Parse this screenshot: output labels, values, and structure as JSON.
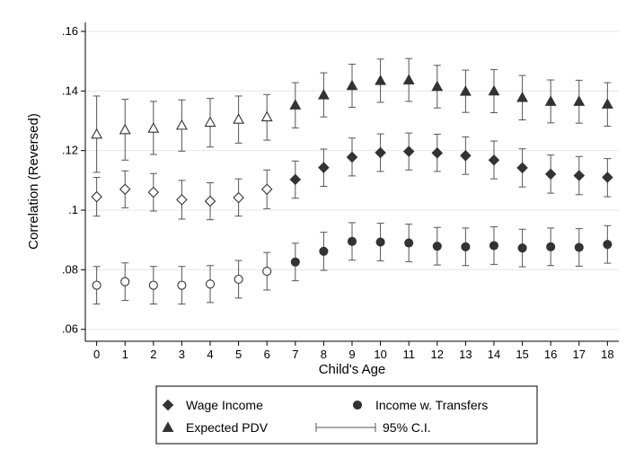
{
  "chart_data": {
    "type": "scatter",
    "title": "",
    "xlabel": "Child's Age",
    "ylabel": "Correlation (Reversed)",
    "x": [
      0,
      1,
      2,
      3,
      4,
      5,
      6,
      7,
      8,
      9,
      10,
      11,
      12,
      13,
      14,
      15,
      16,
      17,
      18
    ],
    "xlim": [
      -0.4,
      18.4
    ],
    "ylim": [
      0.056,
      0.163
    ],
    "yticks": [
      0.06,
      0.08,
      0.1,
      0.12,
      0.14,
      0.16
    ],
    "ytick_labels": [
      ".06",
      ".08",
      ".1",
      ".12",
      ".14",
      ".16"
    ],
    "grid": true,
    "hollow_before_age": 7,
    "legend_position": "bottom",
    "series": [
      {
        "name": "Wage Income",
        "marker": "diamond",
        "values": [
          0.1045,
          0.107,
          0.106,
          0.1035,
          0.103,
          0.1042,
          0.107,
          0.1103,
          0.1143,
          0.1178,
          0.1193,
          0.1197,
          0.1192,
          0.1183,
          0.1168,
          0.1142,
          0.1121,
          0.1116,
          0.111
        ],
        "ci_low": [
          0.098,
          0.1008,
          0.0997,
          0.097,
          0.0968,
          0.098,
          0.1005,
          0.104,
          0.108,
          0.1115,
          0.113,
          0.1135,
          0.113,
          0.112,
          0.1105,
          0.1078,
          0.1057,
          0.1052,
          0.1045
        ],
        "ci_high": [
          0.111,
          0.1132,
          0.1123,
          0.11,
          0.1092,
          0.1105,
          0.1135,
          0.1165,
          0.1205,
          0.1242,
          0.1256,
          0.1259,
          0.1255,
          0.1246,
          0.1232,
          0.1206,
          0.1185,
          0.118,
          0.1173
        ]
      },
      {
        "name": "Income w. Transfers",
        "marker": "circle",
        "values": [
          0.0748,
          0.076,
          0.0748,
          0.0748,
          0.0752,
          0.0768,
          0.0795,
          0.0826,
          0.0862,
          0.0895,
          0.0893,
          0.089,
          0.0879,
          0.0877,
          0.0881,
          0.0873,
          0.0877,
          0.0875,
          0.0885
        ],
        "ci_low": [
          0.0685,
          0.0697,
          0.0685,
          0.0685,
          0.069,
          0.0705,
          0.0732,
          0.0763,
          0.0798,
          0.0832,
          0.083,
          0.0827,
          0.0816,
          0.0814,
          0.0818,
          0.081,
          0.0814,
          0.0812,
          0.0822
        ],
        "ci_high": [
          0.0811,
          0.0823,
          0.0811,
          0.0811,
          0.0814,
          0.0831,
          0.0858,
          0.0889,
          0.0926,
          0.0958,
          0.0956,
          0.0953,
          0.0942,
          0.094,
          0.0944,
          0.0936,
          0.094,
          0.0938,
          0.0948
        ]
      },
      {
        "name": "Expected PDV",
        "marker": "triangle",
        "values": [
          0.1255,
          0.127,
          0.1275,
          0.1285,
          0.1295,
          0.1305,
          0.1313,
          0.1353,
          0.1387,
          0.1418,
          0.1435,
          0.1437,
          0.1415,
          0.1399,
          0.14,
          0.1378,
          0.1365,
          0.1365,
          0.1356
        ],
        "ci_low": [
          0.1127,
          0.1168,
          0.1187,
          0.1198,
          0.1212,
          0.1225,
          0.1235,
          0.1276,
          0.1313,
          0.1345,
          0.1362,
          0.1365,
          0.1343,
          0.1328,
          0.1327,
          0.1303,
          0.1293,
          0.1292,
          0.1282
        ],
        "ci_high": [
          0.1383,
          0.1372,
          0.1365,
          0.137,
          0.1375,
          0.1383,
          0.1388,
          0.1428,
          0.1461,
          0.149,
          0.1507,
          0.1509,
          0.1486,
          0.147,
          0.1472,
          0.1452,
          0.1437,
          0.1436,
          0.1428
        ]
      }
    ],
    "legend": {
      "ci_label": "95% C.I."
    }
  }
}
